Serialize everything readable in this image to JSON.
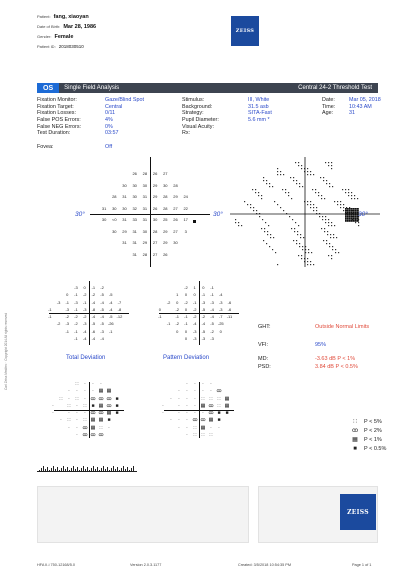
{
  "patient": {
    "name_label": "Patient:",
    "name": "fang, xiaoyan",
    "dob_label": "Date of Birth:",
    "dob": "Mar 28, 1986",
    "gender_label": "Gender:",
    "gender": "Female",
    "id_label": "Patient ID:",
    "id": "2018030510"
  },
  "brand": {
    "logo_text": "ZEISS"
  },
  "title_bar": {
    "eye": "OS",
    "title": "Single Field Analysis",
    "test": "Central 24-2 Threshold Test"
  },
  "params_left": [
    {
      "k": "Fixation Monitor:",
      "v": "Gaze/Blind Spot"
    },
    {
      "k": "Fixation Target:",
      "v": "Central"
    },
    {
      "k": "Fixation Losses:",
      "v": "0/11"
    },
    {
      "k": "False POS Errors:",
      "v": "4%"
    },
    {
      "k": "False NEG Errors:",
      "v": "0%"
    },
    {
      "k": "Test Duration:",
      "v": "03:57"
    },
    {
      "k": "",
      "v": ""
    },
    {
      "k": "Fovea:",
      "v": "Off"
    }
  ],
  "params_mid": [
    {
      "k": "Stimulus:",
      "v": "III, White"
    },
    {
      "k": "Background:",
      "v": "31.5 asb"
    },
    {
      "k": "Strategy:",
      "v": "SITA-Fast"
    },
    {
      "k": "Pupil Diameter:",
      "v": "5.6 mm *"
    },
    {
      "k": "Visual Acuity:",
      "v": ""
    },
    {
      "k": "Rx:",
      "v": ""
    }
  ],
  "params_right": [
    {
      "k": "Date:",
      "v": "Mar 05, 2018"
    },
    {
      "k": "Time:",
      "v": "10:43 AM"
    },
    {
      "k": "Age:",
      "v": "31"
    }
  ],
  "degree_label": "30°",
  "threshold_values": [
    [
      "",
      "",
      "",
      "26",
      "28",
      "26",
      "27",
      "",
      "",
      ""
    ],
    [
      "",
      "",
      "30",
      "30",
      "30",
      "29",
      "30",
      "28",
      "",
      ""
    ],
    [
      "",
      "28",
      "31",
      "30",
      "31",
      "29",
      "28",
      "29",
      "24",
      ""
    ],
    [
      "31",
      "30",
      "30",
      "32",
      "31",
      "26",
      "28",
      "27",
      "22",
      ""
    ],
    [
      "30",
      "<0",
      "31",
      "33",
      "31",
      "30",
      "25",
      "26",
      "17",
      ""
    ],
    [
      "",
      "30",
      "29",
      "31",
      "30",
      "28",
      "29",
      "27",
      "3",
      ""
    ],
    [
      "",
      "",
      "31",
      "31",
      "29",
      "27",
      "29",
      "30",
      "",
      ""
    ],
    [
      "",
      "",
      "",
      "31",
      "28",
      "27",
      "26",
      "",
      "",
      ""
    ]
  ],
  "total_deviation": [
    [
      "",
      "",
      "",
      "-3",
      "0",
      "-1",
      "-2",
      "",
      "",
      ""
    ],
    [
      "",
      "",
      "0",
      "-1",
      "-2",
      "-2",
      "-5",
      "-5",
      "",
      ""
    ],
    [
      "",
      "-3",
      "-1",
      "-3",
      "-1",
      "-4",
      "-4",
      "-4",
      "-7",
      ""
    ],
    [
      "-1",
      "",
      "-3",
      "-1",
      "-3",
      "-8",
      "-5",
      "-4",
      "-8",
      ""
    ],
    [
      "-1",
      "",
      "-2",
      "-2",
      "-2",
      "-4",
      "-4",
      "-5",
      "-12",
      ""
    ],
    [
      "",
      "-2",
      "-3",
      "-2",
      "-3",
      "-5",
      "-5",
      "-26",
      "",
      ""
    ],
    [
      "",
      "",
      "-1",
      "-1",
      "-4",
      "-6",
      "-3",
      "-1",
      "",
      ""
    ],
    [
      "",
      "",
      "",
      "-1",
      "-4",
      "-4",
      "-4",
      "",
      "",
      ""
    ]
  ],
  "pattern_deviation": [
    [
      "",
      "",
      "",
      "-2",
      "1",
      "0",
      "-1",
      "",
      "",
      ""
    ],
    [
      "",
      "",
      "1",
      "0",
      "0",
      "-1",
      "-1",
      "-4",
      "",
      ""
    ],
    [
      "",
      "-2",
      "0",
      "-2",
      "-1",
      "-3",
      "-3",
      "-3",
      "-6",
      ""
    ],
    [
      "0",
      "",
      "-2",
      "0",
      "-2",
      "-5",
      "-4",
      "-3",
      "-6",
      ""
    ],
    [
      "-1",
      "",
      "-1",
      "-1",
      "-2",
      "-2",
      "-4",
      "-7",
      "-11",
      ""
    ],
    [
      "",
      "-1",
      "-2",
      "-1",
      "-4",
      "-4",
      "-5",
      "-25",
      "",
      ""
    ],
    [
      "",
      "",
      "0",
      "0",
      "-3",
      "-5",
      "-2",
      "0",
      "",
      ""
    ],
    [
      "",
      "",
      "",
      "0",
      "-3",
      "-3",
      "-3",
      "",
      "",
      ""
    ]
  ],
  "td_label": "Total Deviation",
  "pd_label": "Pattern Deviation",
  "ght": {
    "label": "GHT:",
    "value": "Outside Normal Limits"
  },
  "vfi": {
    "label": "VFI:",
    "value": "95%"
  },
  "md": {
    "label": "MD:",
    "value": "-3.63 dB P < 1%"
  },
  "psd": {
    "label": "PSD:",
    "value": "3.84 dB P < 0.5%"
  },
  "legend": [
    {
      "symbol": "∷",
      "label": "P < 5%"
    },
    {
      "symbol": "ꝏ",
      "label": "P < 2%"
    },
    {
      "symbol": "▦",
      "label": "P < 1%"
    },
    {
      "symbol": "■",
      "label": "P < 0.5%"
    }
  ],
  "comments_label": "Comments",
  "signature_label": "Signature",
  "footer": {
    "left": "HFA II-i 750-12168/5.0",
    "version": "Version 2.0.3.1177",
    "created": "Created: 3/5/2018 10:54:35 PM",
    "page": "Page 1 of 1"
  },
  "side_text": "Carl Zeiss Meditec · Copyright 2014 All rights reserved"
}
